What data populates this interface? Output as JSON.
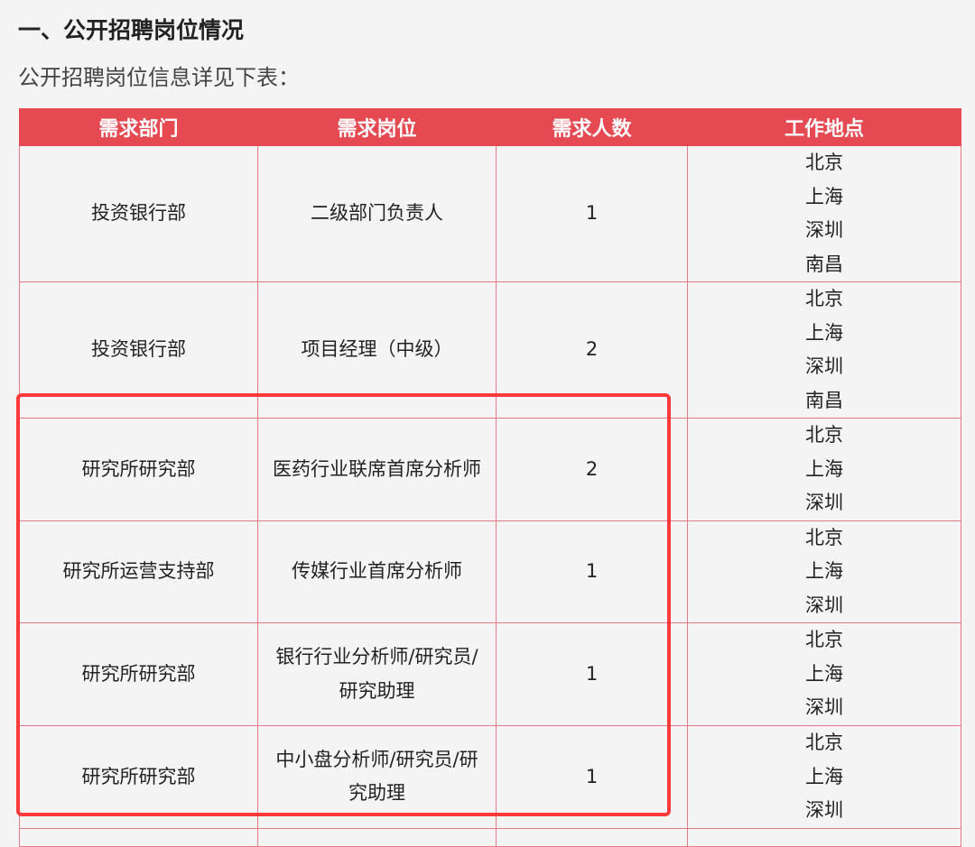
{
  "heading": "一、公开招聘岗位情况",
  "subtitle": "公开招聘岗位信息详见下表：",
  "table": {
    "headers": [
      "需求部门",
      "需求岗位",
      "需求人数",
      "工作地点"
    ],
    "rows": [
      {
        "dept": "投资银行部",
        "position": "二级部门负责人",
        "count": "1",
        "locations": [
          "北京",
          "上海",
          "深圳",
          "南昌"
        ]
      },
      {
        "dept": "投资银行部",
        "position": "项目经理（中级）",
        "count": "2",
        "locations": [
          "北京",
          "上海",
          "深圳",
          "南昌"
        ]
      },
      {
        "dept": "研究所研究部",
        "position": "医药行业联席首席分析师",
        "count": "2",
        "locations": [
          "北京",
          "上海",
          "深圳"
        ]
      },
      {
        "dept": "研究所运营支持部",
        "position": "传媒行业首席分析师",
        "count": "1",
        "locations": [
          "北京",
          "上海",
          "深圳"
        ]
      },
      {
        "dept": "研究所研究部",
        "position": "银行行业分析师/研究员/研究助理",
        "count": "1",
        "locations": [
          "北京",
          "上海",
          "深圳"
        ]
      },
      {
        "dept": "研究所研究部",
        "position": "中小盘分析师/研究员/研究助理",
        "count": "1",
        "locations": [
          "北京",
          "上海",
          "深圳"
        ]
      }
    ]
  },
  "colors": {
    "header": "#e54a52",
    "highlight": "#ff3a3a"
  }
}
